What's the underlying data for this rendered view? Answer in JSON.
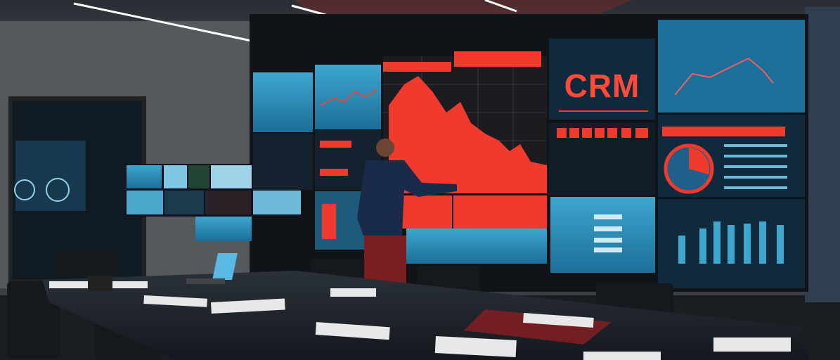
{
  "wall_display": {
    "title": "CRM"
  },
  "colors": {
    "accent_red": "#f03a2e",
    "screen_blue": "#2f8fb8",
    "screen_dark": "#0f2a3c",
    "wall": "#3a3e44",
    "table": "#1c2128"
  }
}
